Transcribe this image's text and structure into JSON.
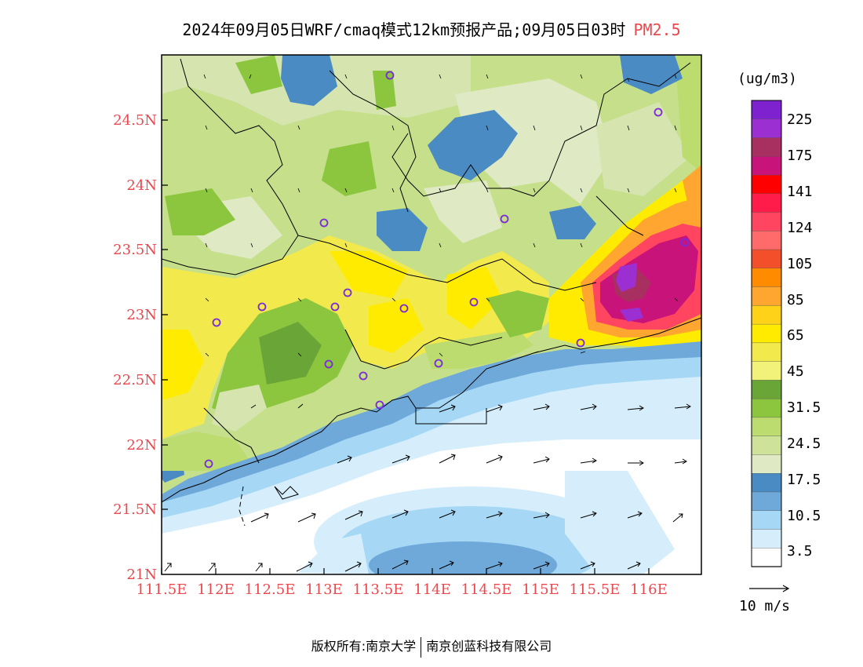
{
  "title": {
    "main": "2024年09月05日WRF/cmaq模式12km预报产品;09月05日03时",
    "variable": "PM2.5"
  },
  "map": {
    "lat_ticks": [
      "24.5N",
      "24N",
      "23.5N",
      "23N",
      "22.5N",
      "22N",
      "21.5N",
      "21N"
    ],
    "lon_ticks": [
      "111.5E",
      "112E",
      "112.5E",
      "113E",
      "113.5E",
      "114E",
      "114.5E",
      "115E",
      "115.5E",
      "116E"
    ],
    "axis_label_color": "#e8484e",
    "extent": {
      "lon": [
        111.5,
        116.75
      ],
      "lat": [
        21.0,
        24.98
      ]
    }
  },
  "legend": {
    "unit": "(ug/m3)",
    "labels": [
      "225",
      "175",
      "141",
      "124",
      "105",
      "85",
      "65",
      "45",
      "31.5",
      "24.5",
      "17.5",
      "10.5",
      "3.5"
    ],
    "colors_top_to_bottom": [
      "#7e22cf",
      "#9b2fd2",
      "#a83060",
      "#c8147a",
      "#ff0000",
      "#ff1c4b",
      "#ff4560",
      "#ff6a6a",
      "#f24f2a",
      "#ff8c00",
      "#ffa630",
      "#ffd21a",
      "#ffeb00",
      "#f2e94c",
      "#f2f27a",
      "#6aa637",
      "#8cc63f",
      "#bddc70",
      "#cfe29a",
      "#dfe9c4",
      "#4a8bc4",
      "#6ea9da",
      "#a6d8f5",
      "#d6eefb",
      "#ffffff"
    ]
  },
  "wind_reference": {
    "label": "10 m/s"
  },
  "copyright": {
    "left": "版权所有:南京大学",
    "right": "南京创蓝科技有限公司"
  }
}
